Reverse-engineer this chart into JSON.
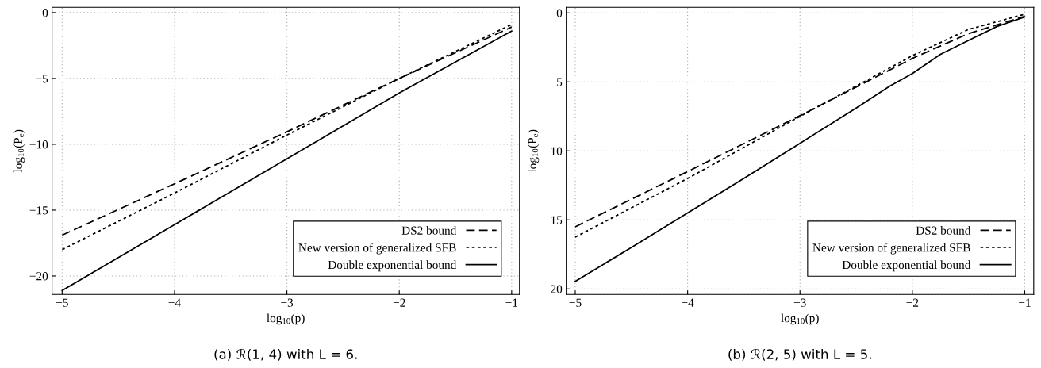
{
  "chart_data": [
    {
      "type": "line",
      "xlabel": "log$_{10}$(p)",
      "ylabel": "log$_{10}$(P$_{e}$)",
      "annotations": [
        "(a) ℛ(1, 4) with L = 6."
      ],
      "xlim": [
        -5.09,
        -0.93
      ],
      "ylim": [
        -21.4,
        0.4
      ],
      "xticks": [
        {
          "value": -5,
          "label": "−5"
        },
        {
          "value": -4,
          "label": "−4"
        },
        {
          "value": -3,
          "label": "−3"
        },
        {
          "value": -2,
          "label": "−2"
        },
        {
          "value": -1,
          "label": "−1"
        }
      ],
      "yticks": [
        {
          "value": -20,
          "label": "−20"
        },
        {
          "value": -15,
          "label": "−15"
        },
        {
          "value": -10,
          "label": "−10"
        },
        {
          "value": -5,
          "label": "−5"
        },
        0
      ],
      "grid": true,
      "legend": "bottom right",
      "marker": "none",
      "series": [
        {
          "name": "DS2 bound",
          "color": "#000000",
          "line_style": "dashed",
          "x": [
            -5,
            -4,
            -3,
            -2,
            -1
          ],
          "values": [
            -16.9,
            -13.0,
            -9.05,
            -5.0,
            -1.1
          ]
        },
        {
          "name": "New version of generalized SFB",
          "color": "#000000",
          "line_style": "dotted",
          "x": [
            -5,
            -4,
            -3,
            -2,
            -1
          ],
          "values": [
            -18.0,
            -13.7,
            -9.3,
            -5.0,
            -0.9
          ]
        },
        {
          "name": "Double exponential bound",
          "color": "#000000",
          "line_style": "solid",
          "x": [
            -5,
            -4,
            -3,
            -2,
            -1
          ],
          "values": [
            -21.1,
            -16.1,
            -11.1,
            -6.1,
            -1.4
          ]
        }
      ]
    },
    {
      "type": "line",
      "xlabel": "log$_{10}$(p)",
      "ylabel": "log$_{10}$(P$_{e}$)",
      "annotations": [
        "(b) ℛ(2, 5) with L = 5."
      ],
      "xlim": [
        -5.08,
        -0.92
      ],
      "ylim": [
        -20.4,
        0.4
      ],
      "xticks": [
        {
          "value": -5,
          "label": "−5"
        },
        {
          "value": -4,
          "label": "−4"
        },
        {
          "value": -3,
          "label": "−3"
        },
        {
          "value": -2,
          "label": "−2"
        },
        {
          "value": -1,
          "label": "−1"
        }
      ],
      "yticks": [
        {
          "value": -20,
          "label": "−20"
        },
        {
          "value": -15,
          "label": "−15"
        },
        {
          "value": -10,
          "label": "−10"
        },
        {
          "value": -5,
          "label": "−5"
        },
        0
      ],
      "grid": true,
      "legend": "bottom right",
      "marker": "none",
      "series": [
        {
          "name": "DS2 bound",
          "color": "#000000",
          "line_style": "dashed",
          "x": [
            -5,
            -4,
            -3,
            -2,
            -1.5,
            -1
          ],
          "values": [
            -15.5,
            -11.5,
            -7.45,
            -3.3,
            -1.5,
            -0.25
          ]
        },
        {
          "name": "New version of generalized SFB",
          "color": "#000000",
          "line_style": "dotted",
          "x": [
            -5,
            -4,
            -3,
            -2,
            -1.5,
            -1
          ],
          "values": [
            -16.25,
            -12.0,
            -7.5,
            -3.1,
            -1.2,
            -0.1
          ]
        },
        {
          "name": "Double exponential bound",
          "color": "#000000",
          "line_style": "solid",
          "x": [
            -5,
            -4.5,
            -4,
            -3.5,
            -3,
            -2.5,
            -2.2,
            -2,
            -1.75,
            -1.5,
            -1.25,
            -1
          ],
          "values": [
            -19.45,
            -17.0,
            -14.5,
            -12.0,
            -9.45,
            -6.9,
            -5.3,
            -4.4,
            -3.0,
            -2.0,
            -1.0,
            -0.3
          ]
        }
      ]
    }
  ]
}
